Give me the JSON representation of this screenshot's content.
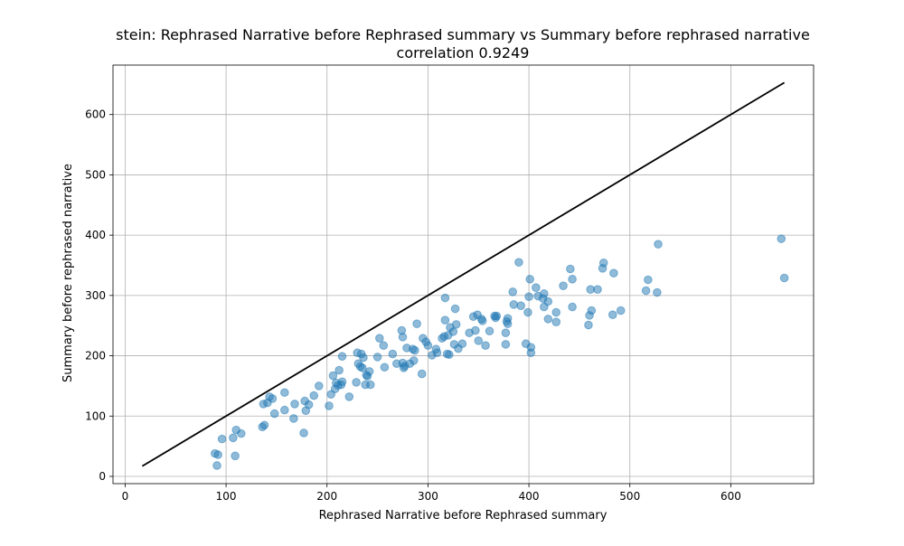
{
  "chart_data": {
    "type": "scatter",
    "title_line1": "stein:  Rephrased Narrative before Rephrased summary vs Summary before rephrased narrative",
    "title_line2": "correlation 0.9249",
    "xlabel": "Rephrased Narrative before Rephrased summary",
    "ylabel": "Summary before rephrased narrative",
    "xlim": [
      -12,
      682
    ],
    "ylim": [
      -12,
      682
    ],
    "xticks": [
      0,
      100,
      200,
      300,
      400,
      500,
      600
    ],
    "yticks": [
      0,
      100,
      200,
      300,
      400,
      500,
      600
    ],
    "grid": true,
    "reference_line": {
      "x": [
        17,
        653
      ],
      "y": [
        17,
        653
      ]
    },
    "points": [
      [
        89,
        38
      ],
      [
        92,
        36
      ],
      [
        91,
        18
      ],
      [
        96,
        62
      ],
      [
        107,
        64
      ],
      [
        109,
        34
      ],
      [
        110,
        77
      ],
      [
        115,
        71
      ],
      [
        136,
        82
      ],
      [
        137,
        120
      ],
      [
        138,
        85
      ],
      [
        141,
        122
      ],
      [
        143,
        132
      ],
      [
        146,
        129
      ],
      [
        148,
        104
      ],
      [
        158,
        110
      ],
      [
        158,
        139
      ],
      [
        167,
        96
      ],
      [
        168,
        120
      ],
      [
        177,
        72
      ],
      [
        178,
        125
      ],
      [
        179,
        109
      ],
      [
        182,
        119
      ],
      [
        187,
        134
      ],
      [
        192,
        150
      ],
      [
        202,
        117
      ],
      [
        204,
        136
      ],
      [
        206,
        167
      ],
      [
        208,
        145
      ],
      [
        209,
        155
      ],
      [
        211,
        151
      ],
      [
        212,
        176
      ],
      [
        214,
        152
      ],
      [
        215,
        157
      ],
      [
        215,
        199
      ],
      [
        222,
        132
      ],
      [
        229,
        156
      ],
      [
        230,
        205
      ],
      [
        231,
        187
      ],
      [
        233,
        182
      ],
      [
        234,
        203
      ],
      [
        235,
        180
      ],
      [
        236,
        197
      ],
      [
        238,
        152
      ],
      [
        239,
        168
      ],
      [
        240,
        166
      ],
      [
        242,
        174
      ],
      [
        243,
        152
      ],
      [
        250,
        198
      ],
      [
        252,
        229
      ],
      [
        256,
        217
      ],
      [
        257,
        181
      ],
      [
        265,
        203
      ],
      [
        269,
        187
      ],
      [
        274,
        242
      ],
      [
        275,
        188
      ],
      [
        275,
        231
      ],
      [
        276,
        180
      ],
      [
        277,
        183
      ],
      [
        279,
        213
      ],
      [
        282,
        187
      ],
      [
        285,
        211
      ],
      [
        286,
        192
      ],
      [
        287,
        209
      ],
      [
        289,
        253
      ],
      [
        294,
        170
      ],
      [
        295,
        229
      ],
      [
        298,
        223
      ],
      [
        300,
        217
      ],
      [
        304,
        201
      ],
      [
        308,
        211
      ],
      [
        309,
        205
      ],
      [
        314,
        229
      ],
      [
        316,
        232
      ],
      [
        317,
        296
      ],
      [
        317,
        259
      ],
      [
        319,
        203
      ],
      [
        320,
        234
      ],
      [
        321,
        202
      ],
      [
        322,
        247
      ],
      [
        325,
        240
      ],
      [
        326,
        219
      ],
      [
        327,
        278
      ],
      [
        328,
        252
      ],
      [
        330,
        212
      ],
      [
        334,
        220
      ],
      [
        341,
        238
      ],
      [
        345,
        265
      ],
      [
        347,
        242
      ],
      [
        349,
        268
      ],
      [
        350,
        225
      ],
      [
        353,
        261
      ],
      [
        354,
        258
      ],
      [
        357,
        217
      ],
      [
        361,
        241
      ],
      [
        366,
        266
      ],
      [
        367,
        263
      ],
      [
        368,
        266
      ],
      [
        377,
        238
      ],
      [
        377,
        219
      ],
      [
        378,
        257
      ],
      [
        379,
        262
      ],
      [
        379,
        253
      ],
      [
        384,
        306
      ],
      [
        385,
        285
      ],
      [
        390,
        355
      ],
      [
        392,
        283
      ],
      [
        397,
        220
      ],
      [
        399,
        272
      ],
      [
        400,
        298
      ],
      [
        401,
        327
      ],
      [
        402,
        214
      ],
      [
        402,
        205
      ],
      [
        407,
        313
      ],
      [
        409,
        299
      ],
      [
        414,
        295
      ],
      [
        415,
        303
      ],
      [
        415,
        281
      ],
      [
        419,
        290
      ],
      [
        419,
        261
      ],
      [
        427,
        256
      ],
      [
        427,
        272
      ],
      [
        434,
        316
      ],
      [
        441,
        344
      ],
      [
        443,
        327
      ],
      [
        443,
        281
      ],
      [
        459,
        251
      ],
      [
        460,
        267
      ],
      [
        461,
        310
      ],
      [
        462,
        275
      ],
      [
        468,
        310
      ],
      [
        473,
        345
      ],
      [
        474,
        354
      ],
      [
        483,
        268
      ],
      [
        484,
        337
      ],
      [
        491,
        275
      ],
      [
        516,
        308
      ],
      [
        518,
        326
      ],
      [
        527,
        305
      ],
      [
        528,
        385
      ],
      [
        650,
        394
      ],
      [
        653,
        329
      ]
    ]
  }
}
